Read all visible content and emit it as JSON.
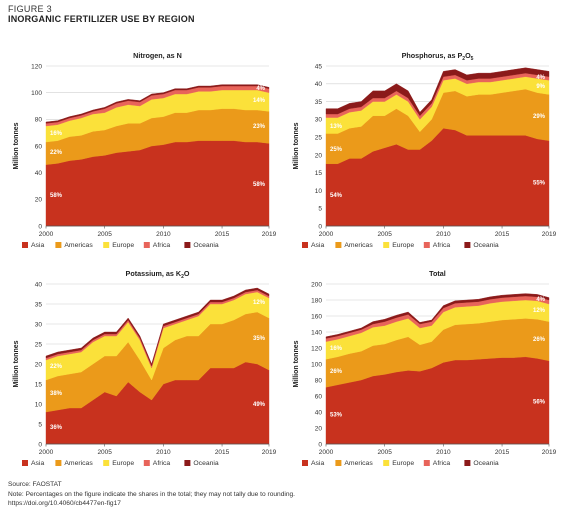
{
  "figure": {
    "label": "FIGURE 3",
    "title": "INORGANIC FERTILIZER USE BY REGION"
  },
  "legend_labels": [
    "Asia",
    "Americas",
    "Europe",
    "Africa",
    "Oceania"
  ],
  "colors": {
    "Asia": "#c8321e",
    "Americas": "#eb9a1a",
    "Europe": "#fbe13a",
    "Africa": "#e8645a",
    "Oceania": "#8b1a1a",
    "grid": "#d0d0d0",
    "axis": "#555555"
  },
  "chart_data": [
    {
      "type": "area",
      "title": "Nitrogen, as N",
      "ylabel": "Million tonnes",
      "xlabel": "",
      "x": [
        2000,
        2001,
        2002,
        2003,
        2004,
        2005,
        2006,
        2007,
        2008,
        2009,
        2010,
        2011,
        2012,
        2013,
        2014,
        2015,
        2016,
        2017,
        2018,
        2019
      ],
      "ylim": [
        0,
        120
      ],
      "yticks": [
        0,
        20,
        40,
        60,
        80,
        100,
        120
      ],
      "xticks": [
        2000,
        2005,
        2010,
        2015,
        2019
      ],
      "stacked": true,
      "grid": true,
      "legend_position": "bottom",
      "series": [
        {
          "name": "Asia",
          "values": [
            46,
            47,
            49,
            50,
            52,
            53,
            55,
            56,
            57,
            60,
            61,
            63,
            63,
            64,
            64,
            64,
            64,
            63,
            63,
            62
          ]
        },
        {
          "name": "Americas",
          "values": [
            17,
            17,
            18,
            18,
            19,
            19,
            20,
            21,
            20,
            21,
            21,
            22,
            22,
            23,
            23,
            24,
            24,
            24,
            24,
            24
          ]
        },
        {
          "name": "Europe",
          "values": [
            12,
            12,
            12,
            13,
            13,
            13,
            14,
            14,
            13,
            14,
            14,
            14,
            14,
            14,
            14,
            14,
            14,
            15,
            15,
            14
          ]
        },
        {
          "name": "Africa",
          "values": [
            2,
            2,
            2,
            2,
            2,
            3,
            3,
            3,
            3,
            3,
            3,
            3,
            3,
            3,
            3,
            3,
            3,
            3,
            3,
            3
          ]
        },
        {
          "name": "Oceania",
          "values": [
            1,
            1,
            1,
            1,
            1,
            1,
            1,
            1,
            1,
            1,
            1,
            1,
            1,
            1,
            1,
            1,
            1,
            1,
            1,
            1
          ]
        }
      ],
      "annotations": [
        {
          "text": "58%",
          "series": "Asia",
          "side": "left"
        },
        {
          "text": "22%",
          "series": "Americas",
          "side": "left"
        },
        {
          "text": "16%",
          "series": "Europe",
          "side": "left"
        },
        {
          "text": "58%",
          "series": "Asia",
          "side": "right"
        },
        {
          "text": "23%",
          "series": "Americas",
          "side": "right"
        },
        {
          "text": "14%",
          "series": "Europe",
          "side": "right"
        },
        {
          "text": "4%",
          "series": "Africa",
          "side": "right"
        }
      ]
    },
    {
      "type": "area",
      "title": "Phosphorus, as P",
      "title_sub": "2",
      "title_mid": "O",
      "title_sub2": "5",
      "ylabel": "Million tonnes",
      "xlabel": "",
      "x": [
        2000,
        2001,
        2002,
        2003,
        2004,
        2005,
        2006,
        2007,
        2008,
        2009,
        2010,
        2011,
        2012,
        2013,
        2014,
        2015,
        2016,
        2017,
        2018,
        2019
      ],
      "ylim": [
        0,
        45
      ],
      "yticks": [
        0,
        5,
        10,
        15,
        20,
        25,
        30,
        35,
        40,
        45
      ],
      "xticks": [
        2000,
        2005,
        2010,
        2015,
        2019
      ],
      "stacked": true,
      "grid": true,
      "legend_position": "bottom",
      "series": [
        {
          "name": "Asia",
          "values": [
            17.5,
            17.5,
            19,
            19,
            21,
            22,
            23,
            21.5,
            21.5,
            24,
            27.5,
            27,
            25.5,
            25.5,
            25.5,
            25.5,
            25.5,
            25.5,
            24.5,
            24
          ]
        },
        {
          "name": "Americas",
          "values": [
            8.5,
            8.5,
            8.5,
            9,
            10,
            9,
            10,
            9.5,
            5,
            6,
            10,
            11,
            11,
            11.5,
            11.5,
            12,
            12.5,
            13,
            13,
            13
          ]
        },
        {
          "name": "Europe",
          "values": [
            4.5,
            4.5,
            4.5,
            4.5,
            4,
            4,
            4,
            4,
            3.5,
            3.5,
            3.5,
            3.5,
            3.5,
            3.5,
            3.5,
            3.5,
            3.5,
            3.5,
            4,
            4
          ]
        },
        {
          "name": "Africa",
          "values": [
            1,
            1,
            1,
            1,
            1,
            1,
            1,
            1,
            1,
            1,
            1,
            1,
            1,
            1,
            1,
            1,
            1,
            1,
            1,
            1
          ]
        },
        {
          "name": "Oceania",
          "values": [
            1.5,
            1.5,
            1.5,
            1.5,
            2,
            2,
            2,
            2,
            1,
            1,
            1.5,
            1.5,
            1.5,
            1.5,
            1.5,
            1.5,
            1.5,
            1.5,
            1.5,
            1.5
          ]
        }
      ],
      "annotations": [
        {
          "text": "54%",
          "series": "Asia",
          "side": "left"
        },
        {
          "text": "25%",
          "series": "Americas",
          "side": "left"
        },
        {
          "text": "13%",
          "series": "Europe",
          "side": "left"
        },
        {
          "text": "55%",
          "series": "Asia",
          "side": "right"
        },
        {
          "text": "29%",
          "series": "Americas",
          "side": "right"
        },
        {
          "text": "9%",
          "series": "Europe",
          "side": "right"
        },
        {
          "text": "4%",
          "series": "Africa",
          "side": "right"
        }
      ]
    },
    {
      "type": "area",
      "title": "Potassium, as K",
      "title_sub": "2",
      "title_mid": "O",
      "title_sub2": "",
      "ylabel": "Million tonnes",
      "xlabel": "",
      "x": [
        2000,
        2001,
        2002,
        2003,
        2004,
        2005,
        2006,
        2007,
        2008,
        2009,
        2010,
        2011,
        2012,
        2013,
        2014,
        2015,
        2016,
        2017,
        2018,
        2019
      ],
      "ylim": [
        0,
        40
      ],
      "yticks": [
        0,
        5,
        10,
        15,
        20,
        25,
        30,
        35,
        40
      ],
      "xticks": [
        2000,
        2005,
        2010,
        2015,
        2019
      ],
      "stacked": true,
      "grid": true,
      "legend_position": "bottom",
      "series": [
        {
          "name": "Asia",
          "values": [
            8,
            8.5,
            9,
            9,
            11,
            13,
            12,
            15.5,
            13,
            11,
            15,
            16,
            16,
            16,
            19,
            19,
            19,
            20.5,
            20,
            18.5
          ]
        },
        {
          "name": "Americas",
          "values": [
            8,
            8.5,
            8.5,
            9,
            9,
            9,
            10,
            10,
            8,
            5,
            9,
            10,
            11,
            11,
            11,
            11,
            12,
            12,
            13,
            13
          ]
        },
        {
          "name": "Europe",
          "values": [
            5,
            5,
            5,
            5,
            5.5,
            5,
            5,
            5,
            5,
            3,
            5,
            4,
            4,
            5,
            5,
            5,
            5,
            5,
            5,
            5
          ]
        },
        {
          "name": "Africa",
          "values": [
            0.5,
            0.5,
            0.5,
            0.5,
            0.5,
            0.5,
            0.5,
            0.5,
            0.5,
            0.5,
            0.5,
            0.5,
            0.5,
            0.5,
            0.5,
            0.5,
            0.5,
            0.5,
            0.5,
            0.5
          ]
        },
        {
          "name": "Oceania",
          "values": [
            0.5,
            0.5,
            0.5,
            0.5,
            0.5,
            0.5,
            0.5,
            0.5,
            0.5,
            0.5,
            0.5,
            0.5,
            0.5,
            0.5,
            0.5,
            0.5,
            0.5,
            0.5,
            0.5,
            0.5
          ]
        }
      ],
      "annotations": [
        {
          "text": "36%",
          "series": "Asia",
          "side": "left"
        },
        {
          "text": "38%",
          "series": "Americas",
          "side": "left"
        },
        {
          "text": "22%",
          "series": "Europe",
          "side": "left"
        },
        {
          "text": "49%",
          "series": "Asia",
          "side": "right"
        },
        {
          "text": "35%",
          "series": "Americas",
          "side": "right"
        },
        {
          "text": "12%",
          "series": "Europe",
          "side": "right"
        }
      ]
    },
    {
      "type": "area",
      "title": "Total",
      "ylabel": "Million tonnes",
      "xlabel": "",
      "x": [
        2000,
        2001,
        2002,
        2003,
        2004,
        2005,
        2006,
        2007,
        2008,
        2009,
        2010,
        2011,
        2012,
        2013,
        2014,
        2015,
        2016,
        2017,
        2018,
        2019
      ],
      "ylim": [
        0,
        200
      ],
      "yticks": [
        0,
        20,
        40,
        60,
        80,
        100,
        120,
        140,
        160,
        180,
        200
      ],
      "xticks": [
        2000,
        2005,
        2010,
        2015,
        2019
      ],
      "stacked": true,
      "grid": true,
      "legend_position": "bottom",
      "series": [
        {
          "name": "Asia",
          "values": [
            71,
            74,
            77,
            80,
            85,
            87,
            90,
            92,
            91,
            95,
            102,
            105,
            105,
            106,
            107,
            108,
            108,
            109,
            107,
            104
          ]
        },
        {
          "name": "Americas",
          "values": [
            35,
            35,
            36,
            36,
            38,
            38,
            40,
            42,
            33,
            33,
            41,
            44,
            45,
            45,
            46,
            47,
            48,
            48,
            49,
            49
          ]
        },
        {
          "name": "Europe",
          "values": [
            22,
            22,
            22,
            23,
            23,
            23,
            23,
            23,
            21,
            20,
            22,
            22,
            22,
            22,
            23,
            23,
            23,
            23,
            23,
            22
          ]
        },
        {
          "name": "Africa",
          "values": [
            4,
            4,
            4,
            4,
            4,
            5,
            5,
            5,
            5,
            5,
            5,
            5,
            5,
            5,
            5,
            5,
            5,
            5,
            5,
            5
          ]
        },
        {
          "name": "Oceania",
          "values": [
            2,
            2,
            2,
            2,
            3,
            3,
            3,
            3,
            2,
            2,
            3,
            3,
            3,
            3,
            3,
            3,
            3,
            3,
            3,
            3
          ]
        }
      ],
      "annotations": [
        {
          "text": "53%",
          "series": "Asia",
          "side": "left"
        },
        {
          "text": "26%",
          "series": "Americas",
          "side": "left"
        },
        {
          "text": "16%",
          "series": "Europe",
          "side": "left"
        },
        {
          "text": "56%",
          "series": "Asia",
          "side": "right"
        },
        {
          "text": "26%",
          "series": "Americas",
          "side": "right"
        },
        {
          "text": "12%",
          "series": "Europe",
          "side": "right"
        },
        {
          "text": "4%",
          "series": "Africa",
          "side": "right"
        }
      ]
    }
  ],
  "source": {
    "line1": "Source: FAOSTAT",
    "line2": "Note: Percentages on the figure indicate the shares in the total; they may not tally due to rounding.",
    "line3": "https://doi.org/10.4060/cb4477en-fig17"
  }
}
